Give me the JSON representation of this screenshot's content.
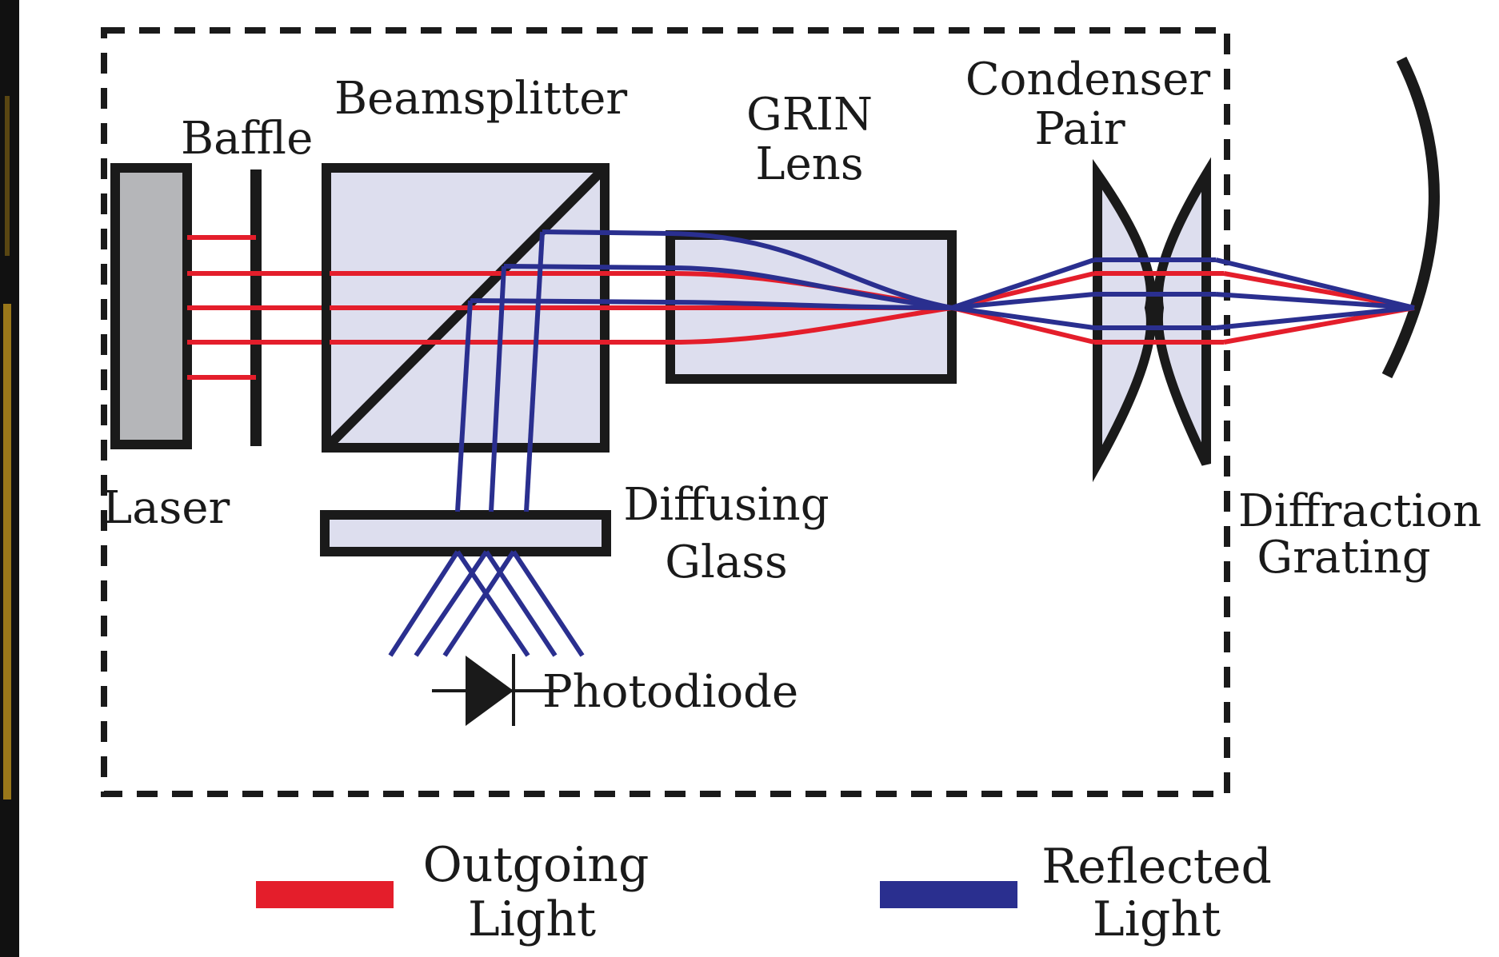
{
  "labels": {
    "baffle": "Baffle",
    "beamsplitter": "Beamsplitter",
    "grin_line1": "GRIN",
    "grin_line2": "Lens",
    "condenser_line1": "Condenser",
    "condenser_line2": "Pair",
    "laser": "Laser",
    "diffusing_line1": "Diffusing",
    "diffusing_line2": "Glass",
    "diffraction_line1": "Diffraction",
    "diffraction_line2": "Grating",
    "photodiode": "Photodiode"
  },
  "legend": {
    "outgoing_line1": "Outgoing",
    "outgoing_line2": "Light",
    "reflected_line1": "Reflected",
    "reflected_line2": "Light"
  },
  "colors": {
    "outgoing": "#e41e2b",
    "reflected": "#2a2f8f",
    "component_fill": "#dddeee",
    "laser_fill": "#b5b6b9",
    "outline": "#1a1a1a",
    "side_strip": "#c79a1e"
  }
}
